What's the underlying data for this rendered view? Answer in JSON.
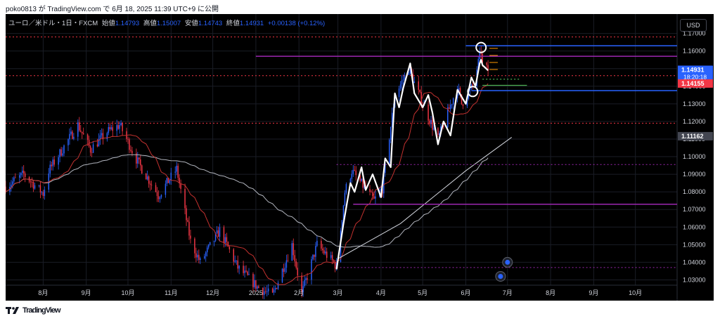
{
  "header": {
    "caption": "poko0813 が TradingView.com で 6月 18, 2025 11:39 UTC+9 に公開"
  },
  "legend": {
    "symbol": "ユーロ／米ドル・1日・FXCM",
    "open_label": "始値",
    "open": "1.14793",
    "high_label": "高値",
    "high": "1.15007",
    "low_label": "安値",
    "low": "1.14743",
    "close_label": "終値",
    "close": "1.14931",
    "change": "+0.00138 (+0.12%)"
  },
  "currency_button": "USD",
  "footer": {
    "brand": "TradingView",
    "logo_icon": "tradingview-logo-icon"
  },
  "colors": {
    "up": "#2962ff",
    "down": "#f23645",
    "ma_fast": "#c2312f",
    "ma_slow": "#b2b5be",
    "background": "#000000"
  },
  "chart_data": {
    "type": "candlestick",
    "yticks": [
      1.17,
      1.16,
      1.15,
      1.14,
      1.13,
      1.12,
      1.11,
      1.1,
      1.09,
      1.08,
      1.07,
      1.06,
      1.05,
      1.04,
      1.03
    ],
    "ytick_labels": [
      "1.17000",
      "1.16000",
      "1.15000",
      "1.14000",
      "1.13000",
      "1.12000",
      "1.11000",
      "1.10000",
      "1.09000",
      "1.08000",
      "1.07000",
      "1.06000",
      "1.05000",
      "1.04000",
      "1.03000"
    ],
    "ylim": [
      1.027,
      1.181
    ],
    "xlim": [
      "2024-07-05",
      "2025-10-31"
    ],
    "xticks": [
      {
        "date": "2024-08-01",
        "label": "8月"
      },
      {
        "date": "2024-09-01",
        "label": "9月"
      },
      {
        "date": "2024-10-01",
        "label": "10月"
      },
      {
        "date": "2024-11-01",
        "label": "11月"
      },
      {
        "date": "2024-12-01",
        "label": "12月"
      },
      {
        "date": "2025-01-01",
        "label": "2025"
      },
      {
        "date": "2025-02-01",
        "label": "2月"
      },
      {
        "date": "2025-03-01",
        "label": "3月"
      },
      {
        "date": "2025-04-01",
        "label": "4月"
      },
      {
        "date": "2025-05-01",
        "label": "5月"
      },
      {
        "date": "2025-06-01",
        "label": "6月"
      },
      {
        "date": "2025-07-01",
        "label": "7月"
      },
      {
        "date": "2025-08-01",
        "label": "8月"
      },
      {
        "date": "2025-09-01",
        "label": "9月"
      },
      {
        "date": "2025-10-01",
        "label": "10月"
      }
    ],
    "price_anchors": [
      [
        "2024-07-05",
        1.083
      ],
      [
        "2024-07-18",
        1.09
      ],
      [
        "2024-08-01",
        1.079
      ],
      [
        "2024-08-05",
        1.092
      ],
      [
        "2024-08-26",
        1.118
      ],
      [
        "2024-09-04",
        1.104
      ],
      [
        "2024-09-16",
        1.114
      ],
      [
        "2024-09-25",
        1.118
      ],
      [
        "2024-10-08",
        1.097
      ],
      [
        "2024-10-23",
        1.078
      ],
      [
        "2024-11-05",
        1.093
      ],
      [
        "2024-11-15",
        1.052
      ],
      [
        "2024-11-22",
        1.04
      ],
      [
        "2024-12-06",
        1.058
      ],
      [
        "2024-12-19",
        1.037
      ],
      [
        "2025-01-02",
        1.026
      ],
      [
        "2025-01-13",
        1.021
      ],
      [
        "2025-01-27",
        1.05
      ],
      [
        "2025-02-03",
        1.022
      ],
      [
        "2025-02-14",
        1.05
      ],
      [
        "2025-02-28",
        1.038
      ],
      [
        "2025-03-06",
        1.08
      ],
      [
        "2025-03-11",
        1.092
      ],
      [
        "2025-03-27",
        1.075
      ],
      [
        "2025-04-02",
        1.082
      ],
      [
        "2025-04-11",
        1.135
      ],
      [
        "2025-04-21",
        1.15
      ],
      [
        "2025-04-30",
        1.132
      ],
      [
        "2025-05-12",
        1.11
      ],
      [
        "2025-05-26",
        1.14
      ],
      [
        "2025-05-29",
        1.13
      ],
      [
        "2025-06-06",
        1.14
      ],
      [
        "2025-06-12",
        1.16
      ],
      [
        "2025-06-13",
        1.152
      ],
      [
        "2025-06-17",
        1.149
      ]
    ],
    "candle_start": "2024-07-05",
    "candle_end": "2025-06-17",
    "ma_fast_period": 20,
    "ma_slow_period": 100,
    "zigzag": [
      [
        "2025-02-28",
        1.036
      ],
      [
        "2025-03-05",
        1.062
      ],
      [
        "2025-03-10",
        1.085
      ],
      [
        "2025-03-13",
        1.08
      ],
      [
        "2025-03-18",
        1.094
      ],
      [
        "2025-03-21",
        1.081
      ],
      [
        "2025-03-26",
        1.09
      ],
      [
        "2025-04-01",
        1.077
      ],
      [
        "2025-04-04",
        1.099
      ],
      [
        "2025-04-08",
        1.094
      ],
      [
        "2025-04-11",
        1.136
      ],
      [
        "2025-04-14",
        1.128
      ],
      [
        "2025-04-17",
        1.139
      ],
      [
        "2025-04-22",
        1.153
      ],
      [
        "2025-04-25",
        1.136
      ],
      [
        "2025-05-01",
        1.128
      ],
      [
        "2025-05-05",
        1.135
      ],
      [
        "2025-05-08",
        1.125
      ],
      [
        "2025-05-12",
        1.107
      ],
      [
        "2025-05-16",
        1.12
      ],
      [
        "2025-05-21",
        1.112
      ],
      [
        "2025-05-26",
        1.138
      ],
      [
        "2025-06-01",
        1.13
      ],
      [
        "2025-06-05",
        1.145
      ],
      [
        "2025-06-08",
        1.14
      ],
      [
        "2025-06-11",
        1.153
      ],
      [
        "2025-06-12",
        1.155
      ],
      [
        "2025-06-13",
        1.152
      ],
      [
        "2025-06-17",
        1.149
      ]
    ],
    "hlines": [
      {
        "price": 1.168,
        "color": "#f23645",
        "style": "dotted",
        "start": "2024-07-05"
      },
      {
        "price": 1.146,
        "color": "#f23645",
        "style": "dotted",
        "start": "2024-07-05"
      },
      {
        "price": 1.119,
        "color": "#f23645",
        "style": "dotted",
        "start": "2024-07-05"
      },
      {
        "price": 1.0955,
        "color": "#9c27b0",
        "style": "dotted",
        "start": "2025-02-28"
      },
      {
        "price": 1.037,
        "color": "#9c27b0",
        "style": "dotted",
        "start": "2025-02-28"
      },
      {
        "price": 1.157,
        "color": "#9c27b0",
        "style": "solid",
        "start": "2025-01-01"
      },
      {
        "price": 1.073,
        "color": "#9c27b0",
        "style": "solid",
        "start": "2025-03-12"
      },
      {
        "price": 1.163,
        "color": "#2962ff",
        "style": "solid",
        "start": "2025-06-01"
      },
      {
        "price": 1.1375,
        "color": "#2962ff",
        "style": "solid",
        "start": "2025-06-05"
      }
    ],
    "short_lines": [
      {
        "price": 1.1405,
        "color": "#4caf50",
        "start": "2025-06-13",
        "end": "2025-07-15"
      },
      {
        "price": 1.144,
        "color": "#4caf50",
        "start": "2025-06-13",
        "end": "2025-07-10",
        "style": "dotted"
      }
    ],
    "rising_line": [
      [
        "2025-03-01",
        1.042
      ],
      [
        "2025-04-15",
        1.062
      ],
      [
        "2025-06-01",
        1.092
      ],
      [
        "2025-07-04",
        1.111
      ]
    ],
    "circles": [
      {
        "date": "2025-06-12",
        "price": 1.162
      },
      {
        "date": "2025-06-06",
        "price": 1.137
      }
    ],
    "event_markers": [
      {
        "date": "2025-07-01",
        "price": 1.04,
        "icon": "economic-calendar-icon"
      },
      {
        "date": "2025-06-26",
        "price": 1.032,
        "icon": "us-flag-icon"
      }
    ],
    "price_badges": [
      {
        "price": 1.14931,
        "label": "1.14931",
        "sublabel": "18:20:18",
        "bg": "#2962ff",
        "color": "#ffffff"
      },
      {
        "price": 1.14155,
        "label": "1.14155",
        "bg": "#f23645",
        "color": "#ffffff"
      },
      {
        "price": 1.11162,
        "label": "1.11162",
        "bg": "#434651",
        "color": "#ffffff"
      }
    ]
  }
}
